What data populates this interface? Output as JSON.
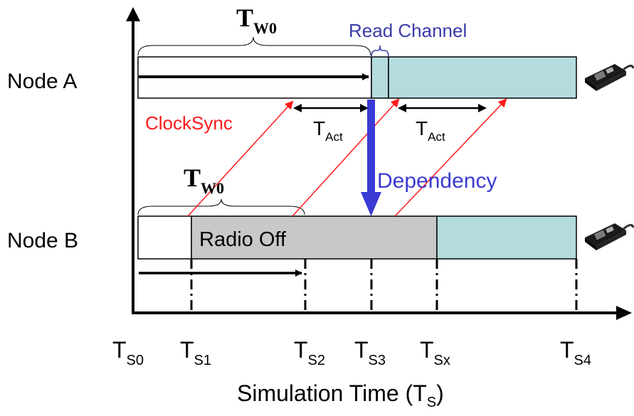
{
  "nodes": {
    "a": {
      "label": "Node A"
    },
    "b": {
      "label": "Node B"
    }
  },
  "labels": {
    "read_channel": "Read Channel",
    "clock_sync": "ClockSync",
    "dependency": "Dependency",
    "radio_off": "Radio Off",
    "tw0": {
      "main": "T",
      "sub": "W0"
    },
    "tact": {
      "main": "T",
      "sub": "Act"
    },
    "x_axis": {
      "prefix": "Simulation Time (T",
      "sub": "S",
      "suffix": ")"
    }
  },
  "ticks": [
    {
      "main": "T",
      "sub": "S0"
    },
    {
      "main": "T",
      "sub": "S1"
    },
    {
      "main": "T",
      "sub": "S2"
    },
    {
      "main": "T",
      "sub": "S3"
    },
    {
      "main": "T",
      "sub": "Sx"
    },
    {
      "main": "T",
      "sub": "S4"
    }
  ],
  "colors": {
    "awake": "#b4dcdf",
    "radio_off": "#c8c8c8",
    "clock_sync": "#ff1a1a",
    "dependency": "#3a3ad4",
    "read_channel": "#3a3aaa",
    "line": "#000000"
  },
  "icons": [
    "sensor-board-icon"
  ]
}
